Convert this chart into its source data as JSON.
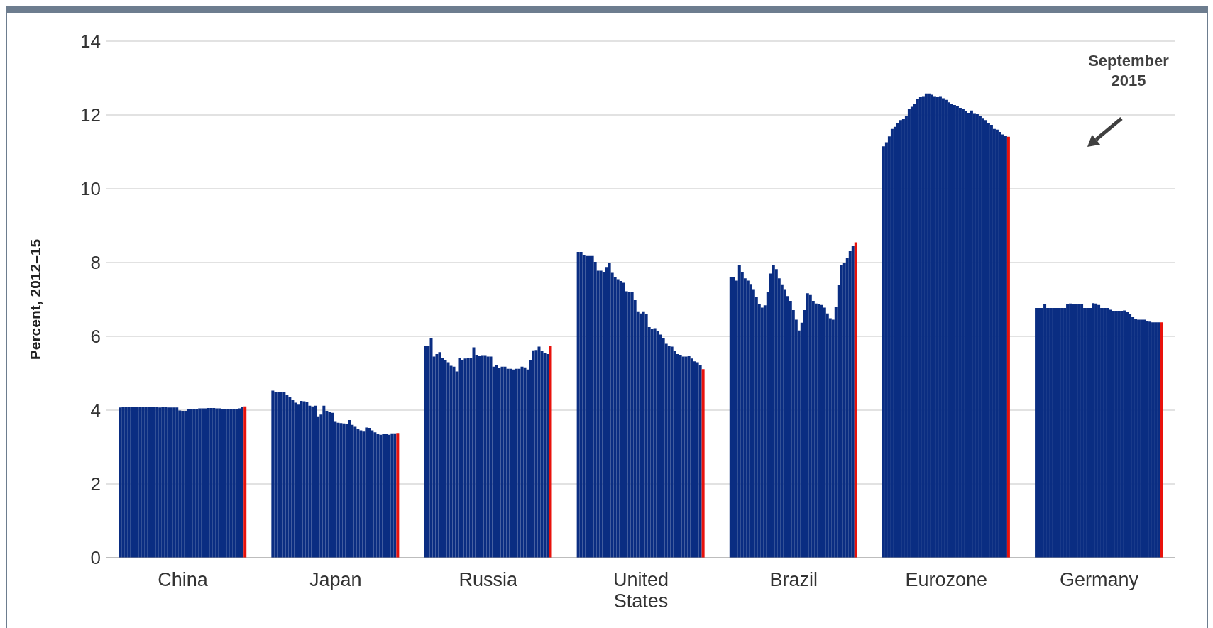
{
  "chart_data": {
    "type": "bar",
    "ylabel": "Percent, 2012–15",
    "categories": [
      "China",
      "Japan",
      "Russia",
      "United States",
      "Brazil",
      "Eurozone",
      "Germany"
    ],
    "ylim": [
      0,
      14
    ],
    "yticks": [
      0,
      2,
      4,
      6,
      8,
      10,
      12,
      14
    ],
    "grid": "y",
    "legend": false,
    "annotations": [
      "September 2015"
    ],
    "series": [
      {
        "color": "#0a2d82",
        "values": [
          4.07,
          4.53,
          5.73,
          8.29,
          7.6,
          11.15,
          6.77
        ]
      },
      {
        "color": "#0a2d82",
        "values": [
          4.08,
          4.5,
          5.73,
          8.29,
          7.6,
          11.26,
          6.77
        ]
      },
      {
        "color": "#0a2d82",
        "values": [
          4.08,
          4.5,
          5.95,
          8.2,
          7.51,
          11.42,
          6.77
        ]
      },
      {
        "color": "#0a2d82",
        "values": [
          4.08,
          4.48,
          5.45,
          8.18,
          7.94,
          11.62,
          6.88
        ]
      },
      {
        "color": "#0a2d82",
        "values": [
          4.08,
          4.48,
          5.52,
          8.18,
          7.73,
          11.68,
          6.77
        ]
      },
      {
        "color": "#0a2d82",
        "values": [
          4.08,
          4.42,
          5.57,
          8.18,
          7.57,
          11.78,
          6.77
        ]
      },
      {
        "color": "#0a2d82",
        "values": [
          4.08,
          4.36,
          5.42,
          8.02,
          7.51,
          11.86,
          6.77
        ]
      },
      {
        "color": "#0a2d82",
        "values": [
          4.08,
          4.28,
          5.35,
          7.78,
          7.42,
          11.9,
          6.77
        ]
      },
      {
        "color": "#0a2d82",
        "values": [
          4.08,
          4.2,
          5.3,
          7.78,
          7.28,
          11.98,
          6.77
        ]
      },
      {
        "color": "#0a2d82",
        "values": [
          4.09,
          4.15,
          5.2,
          7.73,
          7.06,
          12.16,
          6.77
        ]
      },
      {
        "color": "#0a2d82",
        "values": [
          4.09,
          4.25,
          5.18,
          7.88,
          6.87,
          12.22,
          6.77
        ]
      },
      {
        "color": "#0a2d82",
        "values": [
          4.09,
          4.24,
          5.05,
          8.0,
          6.78,
          12.31,
          6.87
        ]
      },
      {
        "color": "#0a2d82",
        "values": [
          4.08,
          4.22,
          5.42,
          7.72,
          6.84,
          12.43,
          6.89
        ]
      },
      {
        "color": "#0a2d82",
        "values": [
          4.08,
          4.12,
          5.35,
          7.6,
          7.21,
          12.48,
          6.88
        ]
      },
      {
        "color": "#0a2d82",
        "values": [
          4.07,
          4.1,
          5.4,
          7.55,
          7.7,
          12.51,
          6.87
        ]
      },
      {
        "color": "#0a2d82",
        "values": [
          4.08,
          4.12,
          5.42,
          7.5,
          7.94,
          12.58,
          6.87
        ]
      },
      {
        "color": "#0a2d82",
        "values": [
          4.08,
          3.83,
          5.42,
          7.45,
          7.82,
          12.58,
          6.88
        ]
      },
      {
        "color": "#0a2d82",
        "values": [
          4.07,
          3.88,
          5.7,
          7.22,
          7.57,
          12.55,
          6.77
        ]
      },
      {
        "color": "#0a2d82",
        "values": [
          4.07,
          4.12,
          5.5,
          7.2,
          7.41,
          12.51,
          6.77
        ]
      },
      {
        "color": "#0a2d82",
        "values": [
          4.07,
          3.98,
          5.48,
          7.2,
          7.28,
          12.5,
          6.77
        ]
      },
      {
        "color": "#0a2d82",
        "values": [
          4.07,
          3.95,
          5.49,
          6.98,
          7.09,
          12.51,
          6.9
        ]
      },
      {
        "color": "#0a2d82",
        "values": [
          3.99,
          3.93,
          5.49,
          6.68,
          6.96,
          12.45,
          6.89
        ]
      },
      {
        "color": "#0a2d82",
        "values": [
          3.98,
          3.7,
          5.45,
          6.62,
          6.71,
          12.41,
          6.85
        ]
      },
      {
        "color": "#0a2d82",
        "values": [
          3.98,
          3.66,
          5.45,
          6.68,
          6.45,
          12.34,
          6.77
        ]
      },
      {
        "color": "#0a2d82",
        "values": [
          4.02,
          3.65,
          5.18,
          6.6,
          6.16,
          12.31,
          6.77
        ]
      },
      {
        "color": "#0a2d82",
        "values": [
          4.03,
          3.64,
          5.22,
          6.25,
          6.37,
          12.27,
          6.77
        ]
      },
      {
        "color": "#0a2d82",
        "values": [
          4.04,
          3.62,
          5.15,
          6.2,
          6.71,
          12.24,
          6.72
        ]
      },
      {
        "color": "#0a2d82",
        "values": [
          4.04,
          3.73,
          5.18,
          6.22,
          7.17,
          12.19,
          6.69
        ]
      },
      {
        "color": "#0a2d82",
        "values": [
          4.05,
          3.6,
          5.18,
          6.15,
          7.12,
          12.16,
          6.69
        ]
      },
      {
        "color": "#0a2d82",
        "values": [
          4.05,
          3.55,
          5.12,
          6.05,
          6.96,
          12.11,
          6.69
        ]
      },
      {
        "color": "#0a2d82",
        "values": [
          4.05,
          3.5,
          5.12,
          5.95,
          6.89,
          12.06,
          6.69
        ]
      },
      {
        "color": "#0a2d82",
        "values": [
          4.06,
          3.45,
          5.1,
          5.8,
          6.87,
          12.12,
          6.7
        ]
      },
      {
        "color": "#0a2d82",
        "values": [
          4.06,
          3.42,
          5.12,
          5.75,
          6.85,
          12.05,
          6.66
        ]
      },
      {
        "color": "#0a2d82",
        "values": [
          4.06,
          3.53,
          5.12,
          5.72,
          6.78,
          12.03,
          6.6
        ]
      },
      {
        "color": "#0a2d82",
        "values": [
          4.05,
          3.52,
          5.18,
          5.6,
          6.62,
          11.98,
          6.52
        ]
      },
      {
        "color": "#0a2d82",
        "values": [
          4.05,
          3.45,
          5.16,
          5.52,
          6.49,
          11.92,
          6.48
        ]
      },
      {
        "color": "#0a2d82",
        "values": [
          4.04,
          3.4,
          5.1,
          5.5,
          6.45,
          11.86,
          6.45
        ]
      },
      {
        "color": "#0a2d82",
        "values": [
          4.04,
          3.36,
          5.35,
          5.45,
          6.81,
          11.78,
          6.45
        ]
      },
      {
        "color": "#0a2d82",
        "values": [
          4.03,
          3.33,
          5.62,
          5.45,
          7.4,
          11.73,
          6.45
        ]
      },
      {
        "color": "#0a2d82",
        "values": [
          4.03,
          3.36,
          5.63,
          5.48,
          7.94,
          11.62,
          6.42
        ]
      },
      {
        "color": "#0a2d82",
        "values": [
          4.02,
          3.36,
          5.72,
          5.4,
          8.0,
          11.6,
          6.4
        ]
      },
      {
        "color": "#0a2d82",
        "values": [
          4.02,
          3.33,
          5.6,
          5.32,
          8.13,
          11.54,
          6.38
        ]
      },
      {
        "color": "#0a2d82",
        "values": [
          4.05,
          3.37,
          5.55,
          5.3,
          8.31,
          11.47,
          6.38
        ]
      },
      {
        "color": "#0a2d82",
        "values": [
          4.08,
          3.37,
          5.52,
          5.22,
          8.45,
          11.44,
          6.38
        ]
      },
      {
        "color": "#e8120c",
        "values": [
          4.1,
          3.38,
          5.73,
          5.11,
          8.55,
          11.41,
          6.38
        ]
      }
    ]
  }
}
